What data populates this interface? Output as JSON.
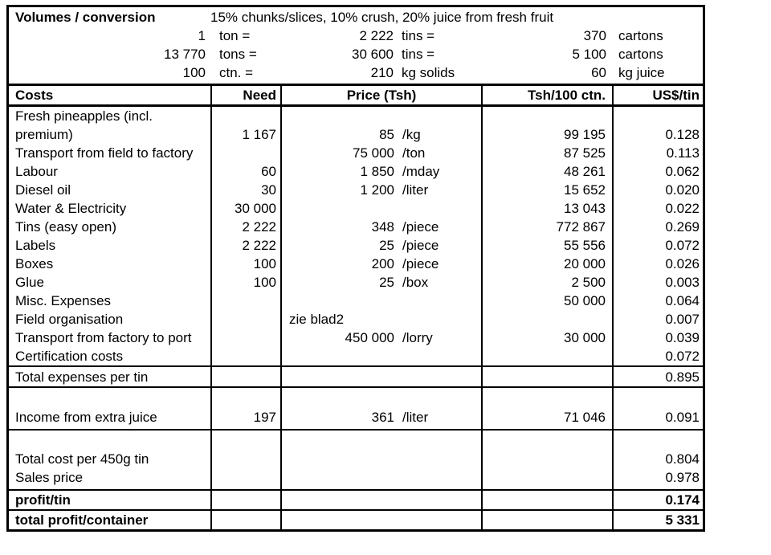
{
  "volumes_section": {
    "title": "Volumes / conversion",
    "note": "15% chunks/slices, 10% crush, 20% juice from fresh fruit",
    "rows": [
      {
        "qty1": "1",
        "unit1": "ton =",
        "qty2": "2 222",
        "unit2": "tins =",
        "qty3": "370",
        "unit3": "cartons"
      },
      {
        "qty1": "13 770",
        "unit1": "tons =",
        "qty2": "30 600",
        "unit2": "tins =",
        "qty3": "5 100",
        "unit3": "cartons"
      },
      {
        "qty1": "100",
        "unit1": "ctn. =",
        "qty2": "210",
        "unit2": "kg solids",
        "qty3": "60",
        "unit3": "kg juice"
      }
    ]
  },
  "costs_table": {
    "headers": {
      "costs": "Costs",
      "need": "Need",
      "price": "Price (Tsh)",
      "tsh_per_100ctn": "Tsh/100 ctn.",
      "usd_per_tin": "US$/tin"
    },
    "rows": [
      {
        "type": "wrap2",
        "label": "Fresh pineapples (incl.\npremium)",
        "need": "1 167",
        "price": "85",
        "unit": "/kg",
        "tsh": "99 195",
        "usd": "0.128"
      },
      {
        "type": "item",
        "label": "Transport from field to factory",
        "need": "",
        "price": "75 000",
        "unit": "/ton",
        "tsh": "87 525",
        "usd": "0.113"
      },
      {
        "type": "item",
        "label": "Labour",
        "need": "60",
        "price": "1 850",
        "unit": "/mday",
        "tsh": "48 261",
        "usd": "0.062"
      },
      {
        "type": "item",
        "label": "Diesel oil",
        "need": "30",
        "price": "1 200",
        "unit": "/liter",
        "tsh": "15 652",
        "usd": "0.020"
      },
      {
        "type": "item",
        "label": "Water & Electricity",
        "need": "30 000",
        "price": "",
        "unit": "",
        "tsh": "13 043",
        "usd": "0.022"
      },
      {
        "type": "item",
        "label": "Tins (easy open)",
        "need": "2 222",
        "price": "348",
        "unit": "/piece",
        "tsh": "772 867",
        "usd": "0.269"
      },
      {
        "type": "item",
        "label": "Labels",
        "need": "2 222",
        "price": "25",
        "unit": "/piece",
        "tsh": "55 556",
        "usd": "0.072"
      },
      {
        "type": "item",
        "label": "Boxes",
        "need": "100",
        "price": "200",
        "unit": "/piece",
        "tsh": "20 000",
        "usd": "0.026"
      },
      {
        "type": "item",
        "label": "Glue",
        "need": "100",
        "price": "25",
        "unit": "/box",
        "tsh": "2 500",
        "usd": "0.003"
      },
      {
        "type": "item",
        "label": "Misc. Expenses",
        "need": "",
        "price": "",
        "unit": "",
        "tsh": "50 000",
        "usd": "0.064"
      },
      {
        "type": "item",
        "label": "Field organisation",
        "need": "",
        "price_note": "zie blad2",
        "tsh": "",
        "usd": "0.007"
      },
      {
        "type": "item",
        "label": "Transport from factory to port",
        "need": "",
        "price": "450 000",
        "unit": "/lorry",
        "tsh": "30 000",
        "usd": "0.039"
      },
      {
        "type": "item",
        "label": "Certification costs",
        "need": "",
        "price": "",
        "unit": "",
        "tsh": "",
        "usd": "0.072"
      },
      {
        "type": "total",
        "label": "Total expenses per tin",
        "need": "",
        "price": "",
        "unit": "",
        "tsh": "",
        "usd": "0.895"
      },
      {
        "type": "income",
        "label": "Income from extra juice",
        "need": "197",
        "price": "361",
        "unit": "/liter",
        "tsh": "71 046",
        "usd": "0.091"
      },
      {
        "type": "summary",
        "label": "Total cost per 450g tin\nSales price",
        "need": "",
        "price": "",
        "unit": "",
        "tsh": "",
        "usd": "0.804\n0.978"
      },
      {
        "type": "bold",
        "label": "profit/tin",
        "need": "",
        "price": "",
        "unit": "",
        "tsh": "",
        "usd": "0.174"
      },
      {
        "type": "bold",
        "label": "total profit/container",
        "need": "",
        "price": "",
        "unit": "",
        "tsh": "",
        "usd": "5 331"
      }
    ]
  }
}
